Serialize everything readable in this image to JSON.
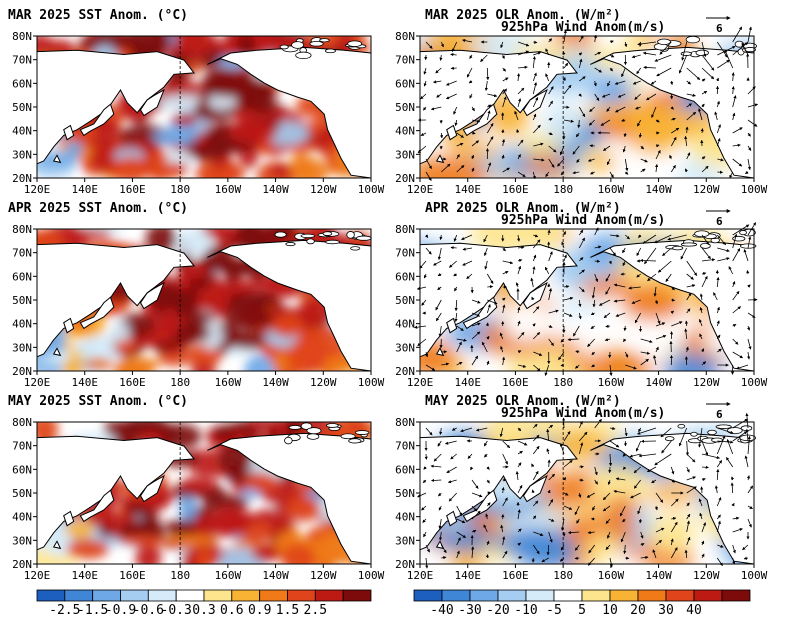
{
  "lon_labels": [
    "120E",
    "140E",
    "160E",
    "180",
    "160W",
    "140W",
    "120W",
    "100W"
  ],
  "lat_labels": [
    "20N",
    "30N",
    "40N",
    "50N",
    "60N",
    "70N",
    "80N"
  ],
  "sst_scale": {
    "colors": [
      "#1c5fbf",
      "#3f86d6",
      "#6fa8e6",
      "#a4cdf1",
      "#d5ebfa",
      "#ffffff",
      "#fde58d",
      "#f8b234",
      "#ef7a17",
      "#e0441a",
      "#be1a14",
      "#7d0b0b"
    ],
    "labels": [
      "-2.5",
      "-1.5",
      "-0.9",
      "-0.6",
      "-0.3",
      "0.3",
      "0.6",
      "0.9",
      "1.5",
      "2.5"
    ]
  },
  "olr_scale": {
    "colors": [
      "#1c5fbf",
      "#3f86d6",
      "#6fa8e6",
      "#a4cdf1",
      "#d5ebfa",
      "#ffffff",
      "#fde58d",
      "#f8b234",
      "#ef7a17",
      "#e0441a",
      "#be1a14",
      "#7d0b0b"
    ],
    "labels": [
      "-40",
      "-30",
      "-20",
      "-10",
      "-5",
      "5",
      "10",
      "20",
      "30",
      "40"
    ]
  },
  "panels": [
    {
      "id": "sst-mar",
      "title": "MAR 2025 SST Anom. (°C)",
      "type": "sst"
    },
    {
      "id": "olr-mar",
      "title": "MAR 2025 OLR Anom. (W/m²)",
      "subtitle": "925hPa Wind Anom(m/s)",
      "ref_value": "6",
      "type": "olr"
    },
    {
      "id": "sst-apr",
      "title": "APR 2025 SST Anom. (°C)",
      "type": "sst"
    },
    {
      "id": "olr-apr",
      "title": "APR 2025 OLR Anom. (W/m²)",
      "subtitle": "925hPa Wind Anom(m/s)",
      "ref_value": "6",
      "type": "olr"
    },
    {
      "id": "sst-may",
      "title": "MAY 2025 SST Anom. (°C)",
      "type": "sst"
    },
    {
      "id": "olr-may",
      "title": "MAY 2025 OLR Anom. (W/m²)",
      "subtitle": "925hPa Wind Anom(m/s)",
      "ref_value": "6",
      "type": "olr"
    }
  ]
}
